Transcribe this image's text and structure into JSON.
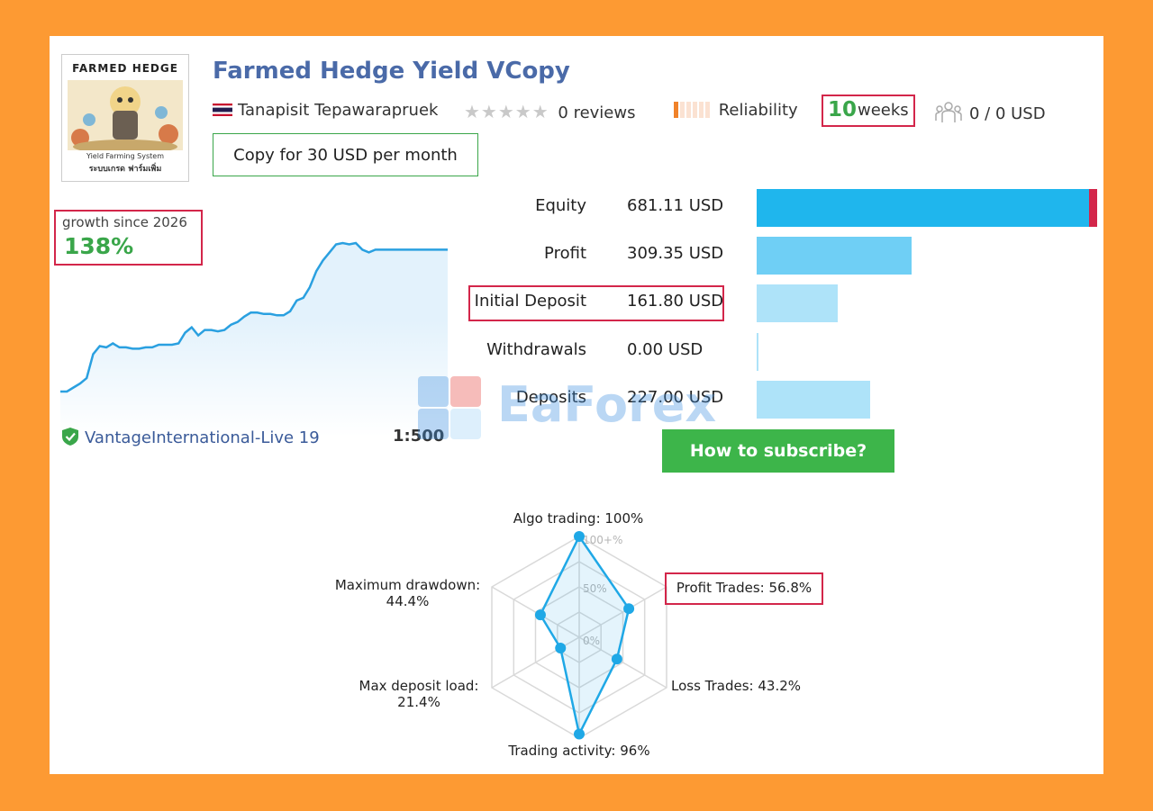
{
  "header": {
    "title": "Farmed Hedge Yield VCopy",
    "author": "Tanapisit Tepawarapruek",
    "reviews": "0 reviews",
    "reliability": "Reliability",
    "weeks_number": "10",
    "weeks_unit": "weeks",
    "subscribers": "0 / 0 USD",
    "copy_button": "Copy for 30 USD per month"
  },
  "avatar": {
    "title": "FARMED HEDGE",
    "caption1": "Yield Farming System",
    "caption2": "ระบบเกรด ฟาร์มเพิ่ม"
  },
  "growth": {
    "label": "growth since 2026",
    "value": "138%"
  },
  "account": {
    "server": "VantageInternational-Live 19",
    "leverage": "1:500"
  },
  "stats": [
    {
      "label": "Equity",
      "value": "681.11 USD",
      "amount": 681.11,
      "color": "#1fb6ed"
    },
    {
      "label": "Profit",
      "value": "309.35 USD",
      "amount": 309.35,
      "color": "#6fcff5"
    },
    {
      "label": "Initial Deposit",
      "value": "161.80 USD",
      "amount": 161.8,
      "color": "#aee3f9"
    },
    {
      "label": "Withdrawals",
      "value": "0.00 USD",
      "amount": 0.0,
      "color": "#aee3f9"
    },
    {
      "label": "Deposits",
      "value": "227.00 USD",
      "amount": 227.0,
      "color": "#aee3f9"
    }
  ],
  "equity_marker_color": "#d3264a",
  "subscribe_button": "How to subscribe?",
  "watermark": "EaForex",
  "radar": {
    "axes": [
      {
        "label": "Algo trading: 100%",
        "value": 100
      },
      {
        "label": "Profit Trades: 56.8%",
        "value": 56.8
      },
      {
        "label": "Loss Trades: 43.2%",
        "value": 43.2
      },
      {
        "label": "Trading activity: 96%",
        "value": 96
      },
      {
        "label": "Max deposit load:",
        "label2": "21.4%",
        "value": 21.4
      },
      {
        "label": "Maximum drawdown:",
        "label2": "44.4%",
        "value": 44.4
      }
    ],
    "ticks": [
      "100+%",
      "50%",
      "0%"
    ]
  },
  "chart_data": {
    "type": "area",
    "title": "",
    "xlabel": "",
    "ylabel": "",
    "x": [
      0,
      1,
      2,
      3,
      4,
      5,
      6,
      7,
      8,
      9,
      10,
      11,
      12,
      13,
      14,
      15,
      16,
      17,
      18,
      19,
      20,
      21,
      22,
      23,
      24,
      25,
      26,
      27,
      28,
      29,
      30,
      31,
      32,
      33,
      34,
      35,
      36,
      37,
      38,
      39,
      40,
      41,
      42,
      43,
      44,
      45,
      46,
      47,
      48,
      49,
      50,
      51,
      52,
      53,
      54,
      55,
      56,
      57,
      58,
      59
    ],
    "values": [
      0,
      0,
      3,
      6,
      10,
      28,
      34,
      33,
      36,
      33,
      33,
      32,
      32,
      33,
      33,
      35,
      35,
      35,
      36,
      44,
      48,
      42,
      46,
      46,
      45,
      46,
      50,
      52,
      56,
      59,
      59,
      58,
      58,
      57,
      57,
      60,
      68,
      70,
      78,
      90,
      98,
      104,
      110,
      111,
      110,
      111,
      106,
      104,
      106,
      106,
      106,
      106,
      106,
      106,
      106,
      106,
      106,
      106,
      106,
      106
    ],
    "colors": {
      "line": "#2aa0e0",
      "fill": "#e3f2fc"
    }
  }
}
